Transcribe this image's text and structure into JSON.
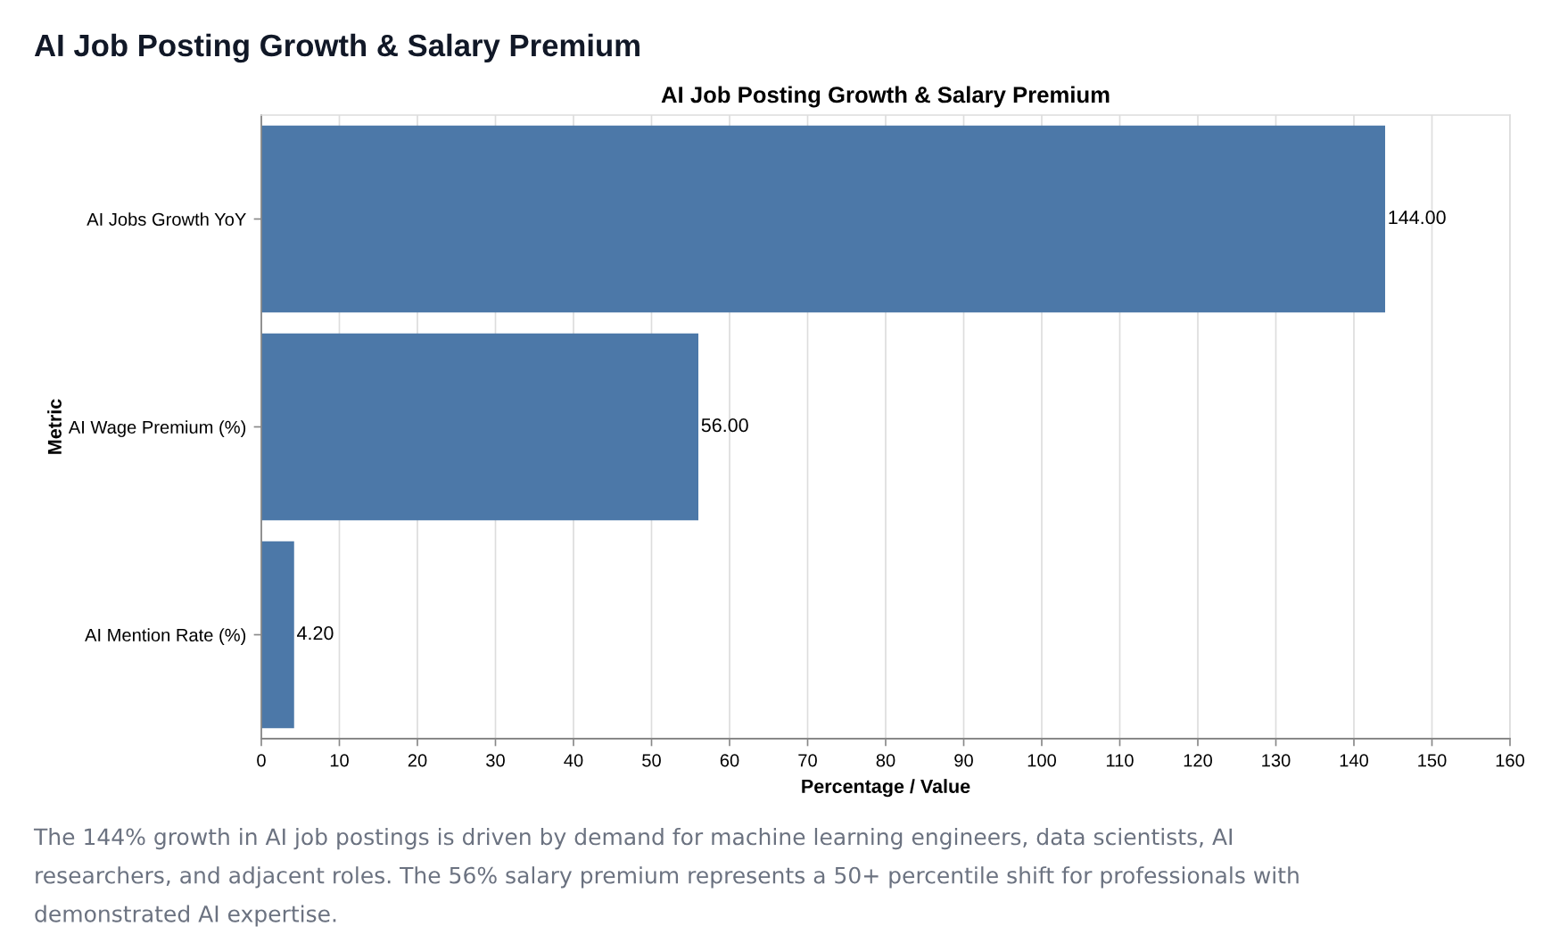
{
  "chart_data": {
    "type": "bar",
    "orientation": "horizontal",
    "title": "AI Job Posting Growth & Salary Premium",
    "subtitle": "AI Job Posting Growth & Salary Premium",
    "xlabel": "Percentage / Value",
    "ylabel": "Metric",
    "categories": [
      "AI Jobs Growth YoY",
      "AI Wage Premium (%)",
      "AI Mention Rate (%)"
    ],
    "values": [
      144,
      56,
      4.2
    ],
    "value_labels": [
      "144.00",
      "56.00",
      "4.20"
    ],
    "color": "#4c78a8",
    "xlim": [
      0,
      160
    ],
    "xticks": [
      0,
      10,
      20,
      30,
      40,
      50,
      60,
      70,
      80,
      90,
      100,
      110,
      120,
      130,
      140,
      150,
      160
    ],
    "grid": "x",
    "annotations": [
      "The 144% growth in AI job postings is driven by demand for machine learning engineers, data scientists, AI researchers, and adjacent roles. The 56% salary premium represents a 50+ percentile shift for professionals with demonstrated AI expertise."
    ]
  }
}
